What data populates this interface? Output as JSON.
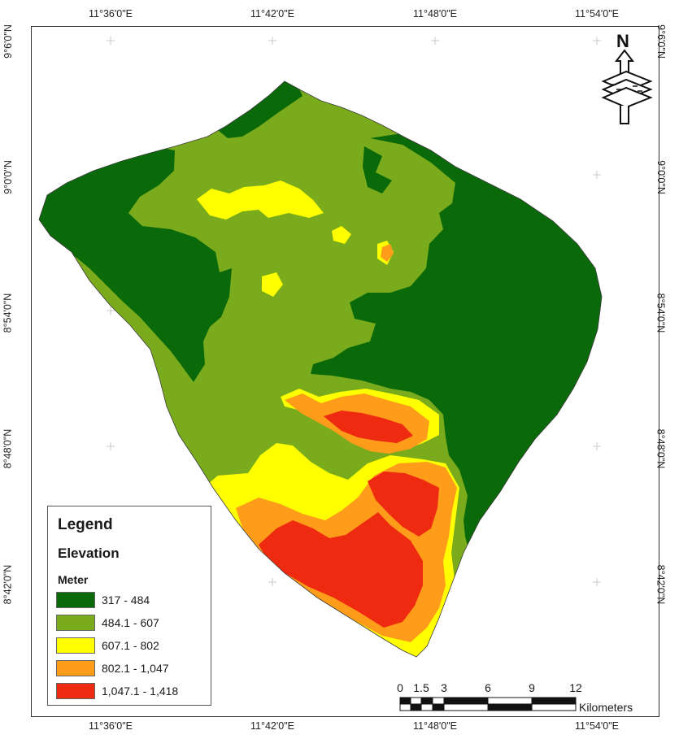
{
  "map": {
    "top_ticks": [
      "11°36'0\"E",
      "11°42'0\"E",
      "11°48'0\"E",
      "11°54'0\"E"
    ],
    "bottom_ticks": [
      "11°36'0\"E",
      "11°42'0\"E",
      "11°48'0\"E",
      "11°54'0\"E"
    ],
    "left_ticks": [
      "9°6'0\"N",
      "9°0'0\"N",
      "8°54'0\"N",
      "8°48'0\"N",
      "8°42'0\"N"
    ],
    "right_ticks": [
      "9°6'0\"N",
      "9°0'0\"N",
      "8°54'0\"N",
      "8°48'0\"N",
      "8°42'0\"N"
    ],
    "north_arrow_label": "N"
  },
  "legend": {
    "title": "Legend",
    "subtitle": "Elevation",
    "unit": "Meter",
    "classes": [
      {
        "label": "317 - 484",
        "color": "#0a6a0a"
      },
      {
        "label": "484.1 - 607",
        "color": "#7aab1c"
      },
      {
        "label": "607.1 - 802",
        "color": "#ffff00"
      },
      {
        "label": "802.1 - 1,047",
        "color": "#ff9c1a"
      },
      {
        "label": "1,047.1 - 1,418",
        "color": "#ee2a10"
      }
    ]
  },
  "scale_bar": {
    "numbers": [
      "0",
      "1.5",
      "3",
      "6",
      "9",
      "12"
    ],
    "unit": "Kilometers"
  }
}
